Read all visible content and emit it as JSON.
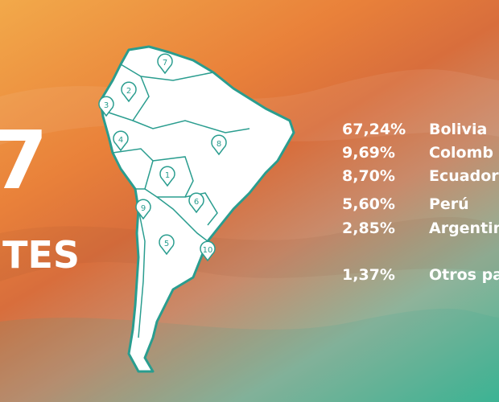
{
  "hero": {
    "number": "7",
    "word": "ITES"
  },
  "map": {
    "markers": [
      {
        "label": "7"
      },
      {
        "label": "2"
      },
      {
        "label": "3"
      },
      {
        "label": "4"
      },
      {
        "label": "8"
      },
      {
        "label": "1"
      },
      {
        "label": "6"
      },
      {
        "label": "9"
      },
      {
        "label": "5"
      },
      {
        "label": "10"
      }
    ]
  },
  "shares": {
    "rows": [
      {
        "percent": "67,24%",
        "country": "Bolivia"
      },
      {
        "percent": "9,69%",
        "country": "Colomb"
      },
      {
        "percent": "8,70%",
        "country": "Ecuador"
      },
      {
        "percent": "5,60%",
        "country": "Perú"
      },
      {
        "percent": "2,85%",
        "country": "Argentin"
      },
      {
        "percent": "1,37%",
        "country": "Otros pa"
      }
    ]
  }
}
